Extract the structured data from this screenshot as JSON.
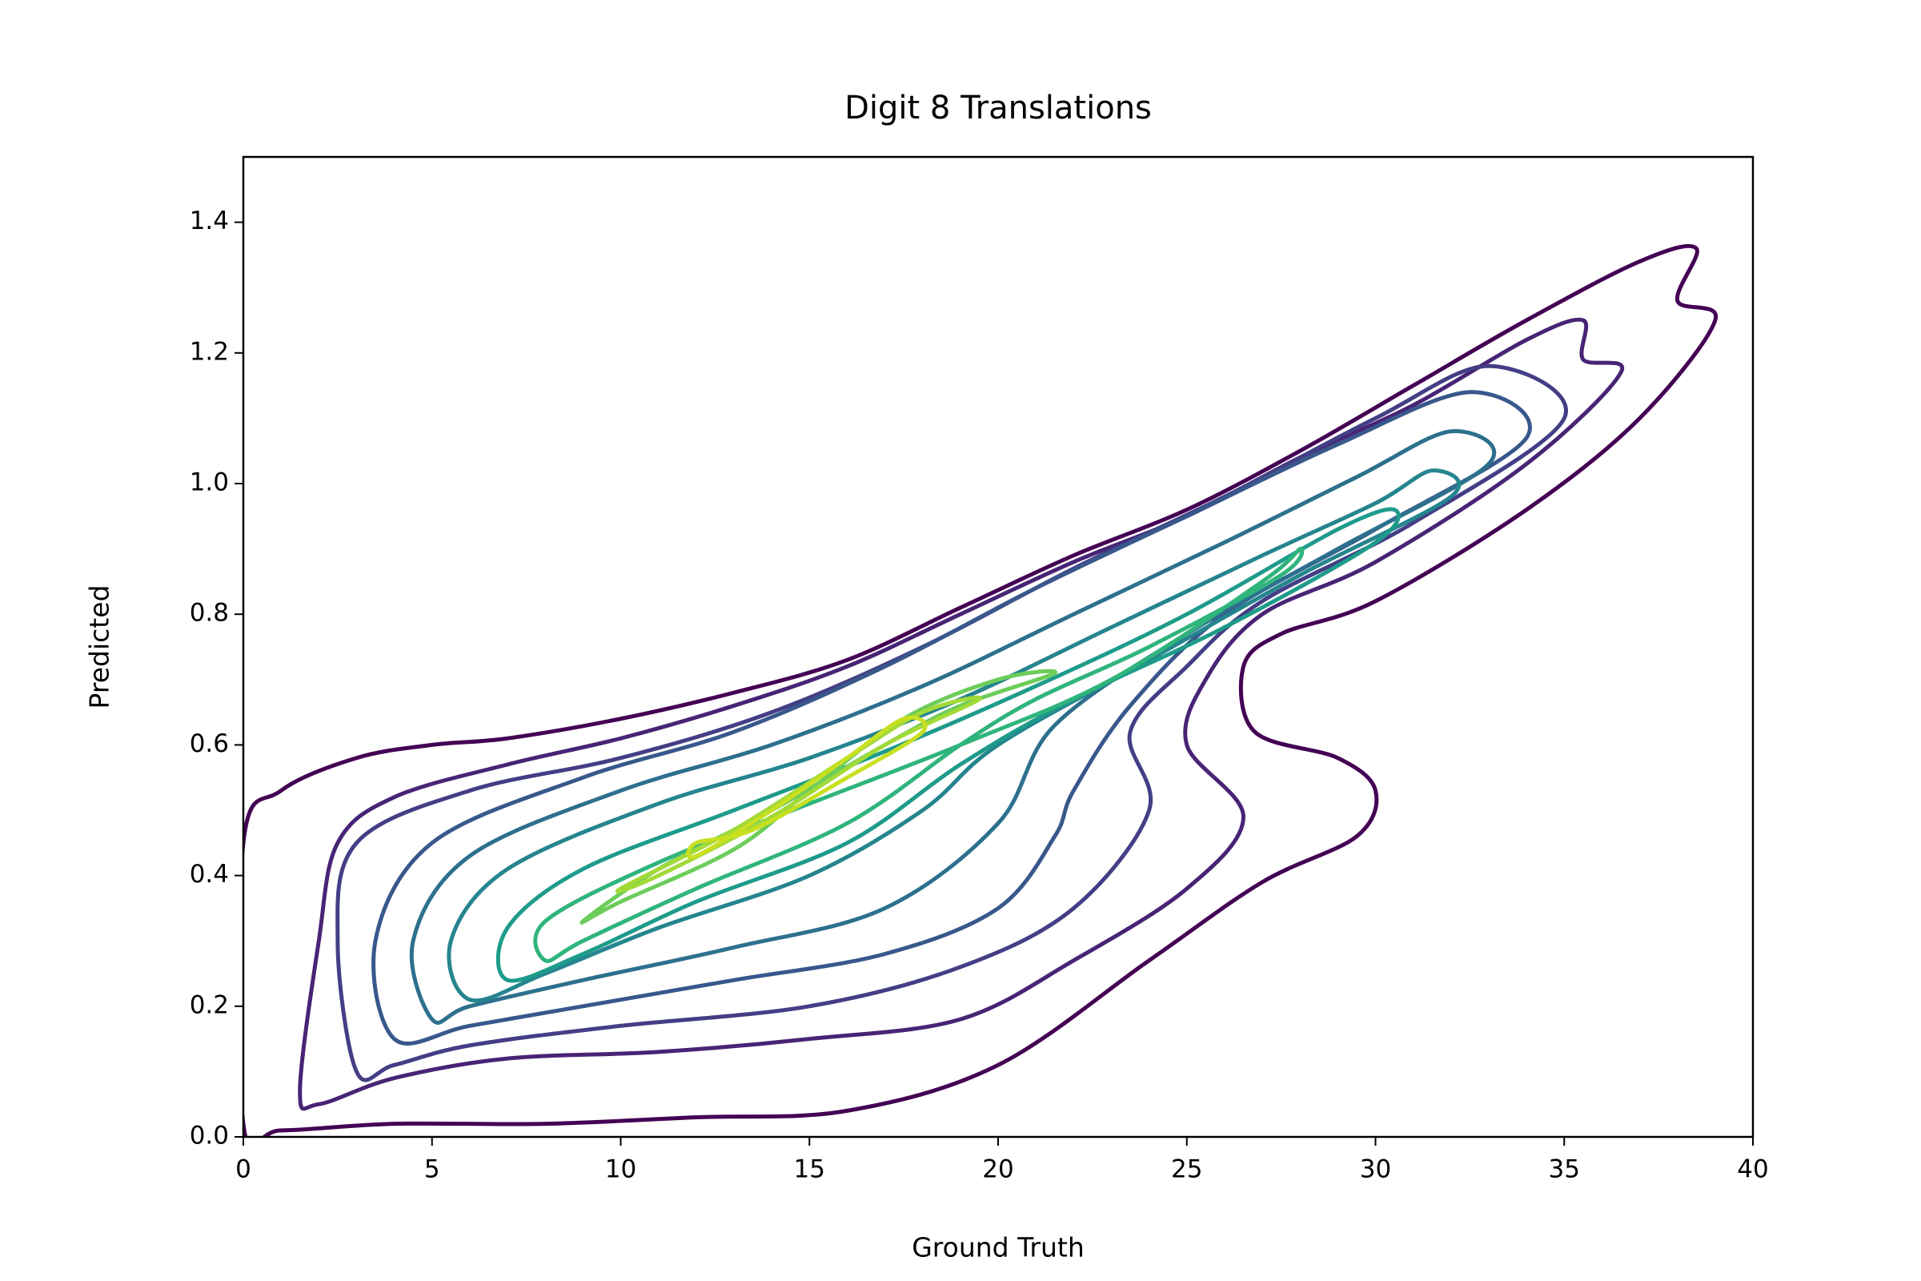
{
  "chart_data": {
    "type": "contour",
    "title": "Digit 8 Translations",
    "xlabel": "Ground Truth",
    "ylabel": "Predicted",
    "xlim": [
      0,
      40
    ],
    "ylim": [
      0,
      1.5
    ],
    "xticks": [
      0,
      5,
      10,
      15,
      20,
      25,
      30,
      35,
      40
    ],
    "yticks": [
      {
        "value": 0,
        "label": "0.0"
      },
      0.2,
      0.4,
      0.6,
      0.8,
      {
        "value": 1,
        "label": "1.0"
      },
      1.2,
      1.4
    ],
    "contours": [
      {
        "color": "#440154",
        "x": [
          0,
          1,
          3,
          5,
          7,
          10,
          13,
          16,
          19,
          22,
          25,
          28,
          31,
          34,
          37,
          38.5,
          38,
          39,
          37,
          34,
          30,
          27.5,
          26.5,
          26.8,
          29,
          30,
          29.5,
          27,
          24,
          20,
          16,
          12,
          8,
          4,
          1,
          0
        ],
        "y": [
          0.45,
          0.53,
          0.58,
          0.6,
          0.61,
          0.64,
          0.68,
          0.73,
          0.81,
          0.89,
          0.96,
          1.05,
          1.15,
          1.25,
          1.34,
          1.36,
          1.28,
          1.25,
          1.1,
          0.96,
          0.82,
          0.77,
          0.72,
          0.62,
          0.58,
          0.53,
          0.46,
          0.39,
          0.27,
          0.11,
          0.04,
          0.03,
          0.02,
          0.02,
          0.01,
          0.02
        ]
      },
      {
        "color": "#482475",
        "x": [
          1.5,
          2,
          2.5,
          4,
          7,
          10,
          13,
          16,
          19,
          22,
          25,
          28,
          31,
          34,
          35.5,
          35.5,
          36.5,
          34,
          30,
          27,
          25.5,
          25,
          26.5,
          25,
          22,
          19,
          15,
          11,
          7,
          4,
          2
        ],
        "y": [
          0.07,
          0.3,
          0.45,
          0.52,
          0.57,
          0.61,
          0.66,
          0.72,
          0.8,
          0.88,
          0.95,
          1.04,
          1.12,
          1.22,
          1.25,
          1.19,
          1.17,
          1.03,
          0.88,
          0.8,
          0.7,
          0.6,
          0.49,
          0.38,
          0.27,
          0.18,
          0.15,
          0.13,
          0.12,
          0.09,
          0.05
        ]
      },
      {
        "color": "#433e85",
        "x": [
          3,
          2.5,
          3,
          6,
          10,
          14,
          18,
          22,
          26,
          30,
          33,
          35,
          31,
          27,
          25,
          23.5,
          24,
          22,
          19,
          15,
          10,
          6,
          4
        ],
        "y": [
          0.1,
          0.3,
          0.45,
          0.53,
          0.58,
          0.65,
          0.75,
          0.87,
          0.98,
          1.1,
          1.18,
          1.1,
          0.94,
          0.82,
          0.72,
          0.62,
          0.5,
          0.35,
          0.26,
          0.2,
          0.17,
          0.14,
          0.11
        ]
      },
      {
        "color": "#38588c",
        "x": [
          4,
          3.5,
          5,
          9,
          13,
          17,
          21,
          25,
          29,
          32.5,
          34,
          30,
          26,
          23.5,
          22,
          21.5,
          20,
          17,
          13,
          9,
          6
        ],
        "y": [
          0.15,
          0.3,
          0.45,
          0.55,
          0.62,
          0.72,
          0.84,
          0.95,
          1.06,
          1.14,
          1.07,
          0.93,
          0.8,
          0.66,
          0.53,
          0.46,
          0.35,
          0.28,
          0.24,
          0.2,
          0.17
        ]
      },
      {
        "color": "#2d708e",
        "x": [
          5,
          4.5,
          6,
          10,
          14,
          18,
          22,
          26,
          29.5,
          32,
          33,
          29,
          25,
          21.5,
          20,
          17,
          13,
          9,
          6
        ],
        "y": [
          0.18,
          0.3,
          0.43,
          0.53,
          0.6,
          0.69,
          0.8,
          0.91,
          1.01,
          1.08,
          1.03,
          0.9,
          0.77,
          0.63,
          0.48,
          0.35,
          0.29,
          0.24,
          0.2
        ]
      },
      {
        "color": "#25858e",
        "x": [
          6,
          5.5,
          7,
          11,
          15,
          19,
          23,
          27,
          30,
          31.5,
          32,
          28,
          24,
          20,
          18,
          15,
          11,
          8
        ],
        "y": [
          0.21,
          0.3,
          0.41,
          0.51,
          0.58,
          0.67,
          0.78,
          0.89,
          0.97,
          1.02,
          0.98,
          0.86,
          0.73,
          0.6,
          0.5,
          0.4,
          0.32,
          0.25
        ]
      },
      {
        "color": "#1e9b8a",
        "x": [
          7,
          7,
          9,
          13,
          17,
          21,
          25,
          29,
          30.5,
          30,
          26,
          22,
          19,
          16,
          12,
          9
        ],
        "y": [
          0.24,
          0.32,
          0.41,
          0.5,
          0.59,
          0.69,
          0.8,
          0.93,
          0.96,
          0.91,
          0.78,
          0.67,
          0.57,
          0.45,
          0.36,
          0.28
        ]
      },
      {
        "color": "#2fb47c",
        "x": [
          8,
          8,
          11,
          15,
          19,
          23,
          27,
          28,
          27.5,
          24,
          21,
          19,
          16,
          12,
          9
        ],
        "y": [
          0.27,
          0.33,
          0.42,
          0.51,
          0.6,
          0.7,
          0.85,
          0.9,
          0.86,
          0.75,
          0.67,
          0.6,
          0.48,
          0.38,
          0.3
        ]
      },
      {
        "color": "#6ccd5a",
        "x": [
          9,
          11,
          14,
          17,
          19,
          21.5,
          20,
          17.5,
          15,
          13,
          10
        ],
        "y": [
          0.33,
          0.41,
          0.5,
          0.6,
          0.66,
          0.71,
          0.7,
          0.64,
          0.53,
          0.44,
          0.36
        ]
      },
      {
        "color": "#a2da37",
        "x": [
          10,
          13,
          16,
          18,
          19.5,
          17,
          14,
          11
        ],
        "y": [
          0.38,
          0.47,
          0.58,
          0.65,
          0.67,
          0.6,
          0.49,
          0.4
        ]
      },
      {
        "color": "#c8e020",
        "x": [
          12,
          14,
          16,
          17.5,
          18,
          16,
          13.5,
          12
        ],
        "y": [
          0.43,
          0.5,
          0.58,
          0.64,
          0.62,
          0.55,
          0.47,
          0.45
        ]
      }
    ]
  }
}
